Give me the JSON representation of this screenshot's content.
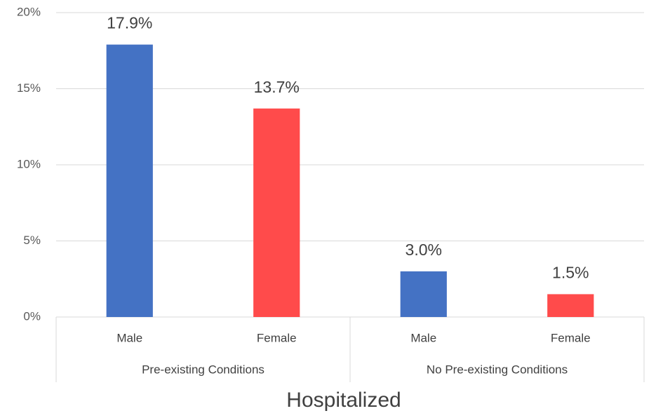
{
  "chart_data": {
    "type": "bar",
    "x_label": "Hospitalized",
    "groups": [
      {
        "name": "Pre-existing Conditions",
        "categories": [
          "Male",
          "Female"
        ],
        "values": [
          17.9,
          13.7
        ],
        "value_labels": [
          "17.9%",
          "13.7%"
        ]
      },
      {
        "name": "No Pre-existing Conditions",
        "categories": [
          "Male",
          "Female"
        ],
        "values": [
          3.0,
          1.5
        ],
        "value_labels": [
          "3.0%",
          "1.5%"
        ]
      }
    ],
    "colors": [
      "#4472c4",
      "#ff4b4b"
    ],
    "ylim": [
      0,
      20
    ],
    "yticks": [
      {
        "value": 0,
        "label": "0%"
      },
      {
        "value": 5,
        "label": "5%"
      },
      {
        "value": 10,
        "label": "10%"
      },
      {
        "value": 15,
        "label": "15%"
      },
      {
        "value": 20,
        "label": "20%"
      }
    ],
    "grid": true
  }
}
